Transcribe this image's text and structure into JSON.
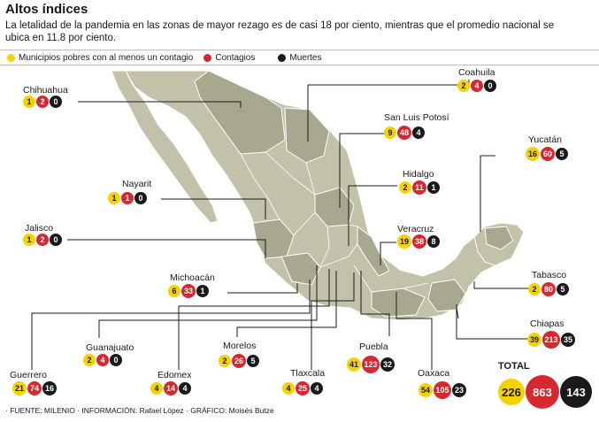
{
  "title": "Altos índices",
  "subtitle": "La letalidad de la pandemia en las zonas de mayor rezago es de casi 18 por ciento, mientras que el promedio nacional se ubica en 11.8 por ciento.",
  "legend": {
    "poor": "Municipios pobres con al menos un contagio",
    "contagios": "Contagios",
    "muertes": "Muertes"
  },
  "colors": {
    "poor": "#f6d300",
    "contagios": "#d7282f",
    "muertes": "#1a1a1a",
    "land": "#bfbfa6",
    "land_dark": "#a7a78c"
  },
  "states": [
    {
      "name": "Chihuahua",
      "values": [
        "1",
        "2",
        "0"
      ]
    },
    {
      "name": "Coahuila",
      "values": [
        "2",
        "4",
        "0"
      ]
    },
    {
      "name": "San Luis Potosí",
      "values": [
        "9",
        "48",
        "4"
      ]
    },
    {
      "name": "Nayarit",
      "values": [
        "1",
        "1",
        "0"
      ]
    },
    {
      "name": "Yucatán",
      "values": [
        "16",
        "60",
        "5"
      ]
    },
    {
      "name": "Hidalgo",
      "values": [
        "2",
        "11",
        "1"
      ]
    },
    {
      "name": "Jalisco",
      "values": [
        "1",
        "2",
        "0"
      ]
    },
    {
      "name": "Veracruz",
      "values": [
        "19",
        "38",
        "8"
      ]
    },
    {
      "name": "Michoacán",
      "values": [
        "6",
        "33",
        "1"
      ]
    },
    {
      "name": "Tabasco",
      "values": [
        "2",
        "80",
        "5"
      ]
    },
    {
      "name": "Chiapas",
      "values": [
        "39",
        "213",
        "35"
      ]
    },
    {
      "name": "Guanajuato",
      "values": [
        "2",
        "4",
        "0"
      ]
    },
    {
      "name": "Morelos",
      "values": [
        "2",
        "26",
        "5"
      ]
    },
    {
      "name": "Puebla",
      "values": [
        "41",
        "123",
        "32"
      ]
    },
    {
      "name": "Guerrero",
      "values": [
        "21",
        "74",
        "16"
      ]
    },
    {
      "name": "Edomex",
      "values": [
        "4",
        "14",
        "4"
      ]
    },
    {
      "name": "Tlaxcala",
      "values": [
        "4",
        "25",
        "4"
      ]
    },
    {
      "name": "Oaxaca",
      "values": [
        "54",
        "105",
        "23"
      ]
    }
  ],
  "total": {
    "label": "TOTAL",
    "values": [
      "226",
      "863",
      "143"
    ]
  },
  "footer": "· FUENTE: MILENIO · INFORMACIÓN: Rafael López · GRÁFICO: Moisés Butze"
}
